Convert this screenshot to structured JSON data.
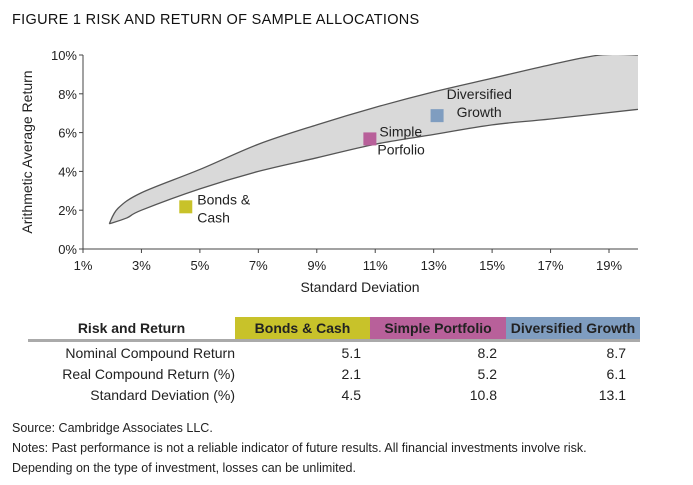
{
  "figure_title": "FIGURE 1  RISK AND RETURN OF SAMPLE ALLOCATIONS",
  "chart_data": {
    "type": "scatter",
    "title": "RISK AND RETURN OF SAMPLE ALLOCATIONS",
    "xlabel": "Standard Deviation",
    "ylabel": "Arithmetic Average Return",
    "xlim": [
      1,
      20
    ],
    "ylim": [
      0,
      10
    ],
    "xticks": [
      "1%",
      "3%",
      "5%",
      "7%",
      "9%",
      "11%",
      "13%",
      "15%",
      "17%",
      "19%"
    ],
    "xtick_values": [
      1,
      3,
      5,
      7,
      9,
      11,
      13,
      15,
      17,
      19
    ],
    "yticks": [
      "0%",
      "2%",
      "4%",
      "6%",
      "8%",
      "10%"
    ],
    "ytick_values": [
      0,
      2,
      4,
      6,
      8,
      10
    ],
    "band": {
      "upper": [
        [
          1.9,
          1.3
        ],
        [
          2.2,
          2.1
        ],
        [
          3,
          2.9
        ],
        [
          5,
          4.1
        ],
        [
          7,
          5.4
        ],
        [
          9,
          6.4
        ],
        [
          11,
          7.3
        ],
        [
          13,
          8.1
        ],
        [
          15,
          8.8
        ],
        [
          17,
          9.5
        ],
        [
          18.7,
          10
        ],
        [
          20,
          10
        ]
      ],
      "lower": [
        [
          1.9,
          1.3
        ],
        [
          2.5,
          1.6
        ],
        [
          3,
          2.0
        ],
        [
          5,
          3.1
        ],
        [
          7,
          4.0
        ],
        [
          9,
          4.7
        ],
        [
          11,
          5.4
        ],
        [
          13,
          5.9
        ],
        [
          15,
          6.4
        ],
        [
          17,
          6.7
        ],
        [
          20,
          7.2
        ]
      ],
      "fill": "#d9d9d9",
      "stroke": "#555555"
    },
    "points": [
      {
        "label1": "Bonds &",
        "label2": "Cash",
        "x": 4.5,
        "y": 2.2,
        "color": "#c8c22a"
      },
      {
        "label1": "Simple",
        "label2": "Porfolio",
        "x": 10.8,
        "y": 5.7,
        "color": "#b8609a"
      },
      {
        "label1": "Diversified",
        "label2": "Growth",
        "x": 13.1,
        "y": 6.9,
        "color": "#7f9dc0"
      }
    ]
  },
  "table": {
    "headers": [
      "Risk and Return",
      "Bonds & Cash",
      "Simple Portfolio",
      "Diversified Growth"
    ],
    "header_colors": [
      "#ffffff",
      "#c8c22a",
      "#b8609a",
      "#7f9dc0"
    ],
    "rows": [
      {
        "label": "Nominal Compound Return",
        "values": [
          "5.1",
          "8.2",
          "8.7"
        ]
      },
      {
        "label": "Real Compound Return (%)",
        "values": [
          "2.1",
          "5.2",
          "6.1"
        ]
      },
      {
        "label": "Standard Deviation (%)",
        "values": [
          "4.5",
          "10.8",
          "13.1"
        ]
      }
    ]
  },
  "notes": {
    "source": "Source: Cambridge Associates LLC.",
    "line1": "Notes: Past performance is not a reliable indicator of future results. All financial investments involve risk.",
    "line2": "Depending on the type of investment, losses can be unlimited."
  }
}
